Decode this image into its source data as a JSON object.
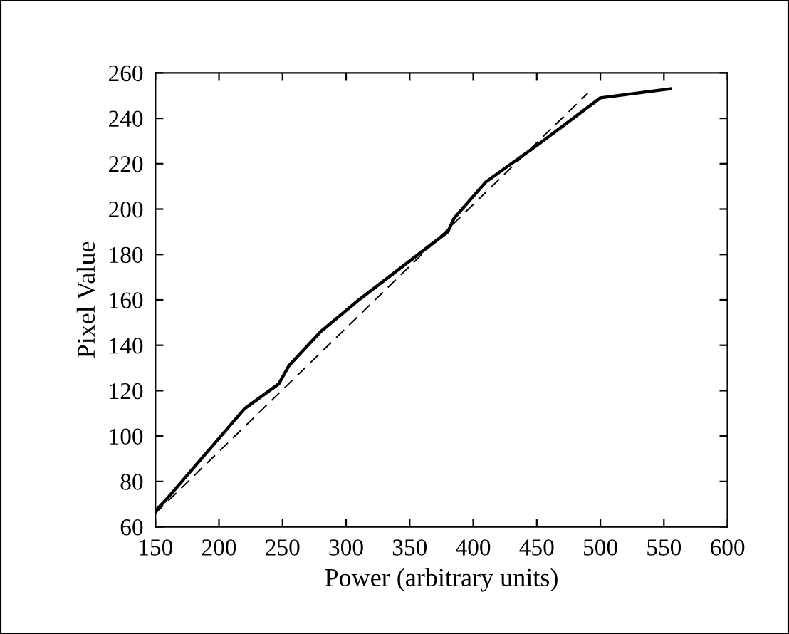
{
  "chart_data": {
    "type": "line",
    "xlabel": "Power (arbitrary units)",
    "ylabel": "Pixel Value",
    "series": [
      {
        "color": "#000000",
        "line_style": "solid",
        "x": [
          150,
          160,
          220,
          247,
          255,
          280,
          310,
          380,
          385,
          410,
          420,
          450,
          500,
          555
        ],
        "values": [
          67,
          73,
          112,
          123,
          131,
          146,
          160,
          190,
          196,
          212,
          216,
          228,
          249,
          253
        ]
      },
      {
        "color": "#000000",
        "line_style": "dashed",
        "x": [
          150,
          490
        ],
        "values": [
          66,
          251
        ]
      }
    ],
    "xlim": [
      150,
      600
    ],
    "xticks": [
      150,
      200,
      250,
      300,
      350,
      400,
      450,
      500,
      550,
      600
    ],
    "ylim": [
      60,
      260
    ],
    "yticks": [
      60,
      80,
      100,
      120,
      140,
      160,
      180,
      200,
      220,
      240,
      260
    ],
    "grid": false,
    "marker": "none"
  }
}
